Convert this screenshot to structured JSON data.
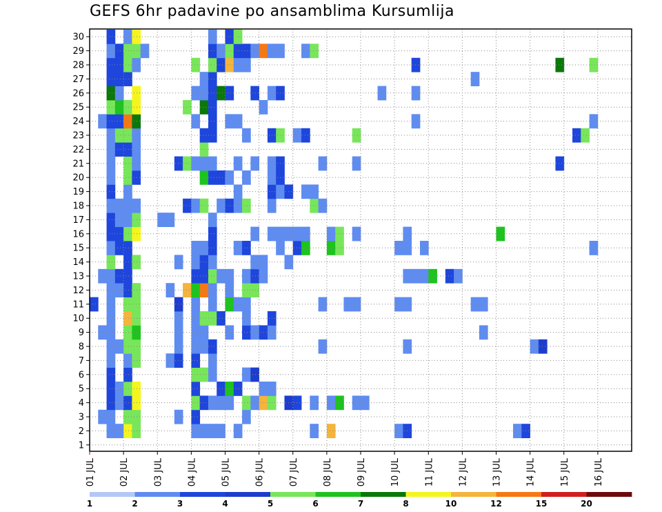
{
  "title": "GEFS 6hr padavine po ansamblima Kursumlija",
  "chart_data": {
    "type": "heatmap",
    "title": "GEFS 6hr padavine po ansamblima Kursumlija",
    "x_ticks": [
      "01 JUL",
      "02 JUL",
      "03 JUL",
      "04 JUL",
      "05 JUL",
      "06 JUL",
      "07 JUL",
      "08 JUL",
      "09 JUL",
      "10 JUL",
      "11 JUL",
      "12 JUL",
      "13 JUL",
      "14 JUL",
      "15 JUL",
      "16 JUL"
    ],
    "y_ticks": [
      "1",
      "2",
      "3",
      "4",
      "5",
      "6",
      "7",
      "8",
      "9",
      "10",
      "11",
      "12",
      "13",
      "14",
      "15",
      "16",
      "17",
      "18",
      "19",
      "20",
      "21",
      "22",
      "23",
      "24",
      "25",
      "26",
      "27",
      "28",
      "29",
      "30"
    ],
    "x_step_hours": 6,
    "n_steps": 60,
    "grid": true,
    "legend": {
      "position": "bottom",
      "labels": [
        "1",
        "2",
        "3",
        "4",
        "5",
        "6",
        "7",
        "8",
        "10",
        "12",
        "15",
        "20"
      ],
      "colors": [
        "#b4c8f5",
        "#5f8cf0",
        "#1e46dc",
        "#1e3ccd",
        "#78e65a",
        "#1ec31e",
        "#0a780a",
        "#f5f51e",
        "#f5b43c",
        "#f57814",
        "#d21e1e",
        "#6e0a0a"
      ]
    },
    "cells": [
      [
        2,
        1,
        2
      ],
      [
        3,
        1,
        2
      ],
      [
        4,
        1,
        8
      ],
      [
        5,
        1,
        5
      ],
      [
        12,
        1,
        2
      ],
      [
        13,
        1,
        2
      ],
      [
        14,
        1,
        2
      ],
      [
        15,
        1,
        2
      ],
      [
        17,
        1,
        2
      ],
      [
        26,
        1,
        2
      ],
      [
        28,
        1,
        9
      ],
      [
        36,
        1,
        2
      ],
      [
        37,
        1,
        3
      ],
      [
        50,
        1,
        2
      ],
      [
        51,
        1,
        3
      ],
      [
        1,
        2,
        2
      ],
      [
        2,
        2,
        2
      ],
      [
        4,
        2,
        5
      ],
      [
        5,
        2,
        5
      ],
      [
        10,
        2,
        2
      ],
      [
        12,
        2,
        3
      ],
      [
        18,
        2,
        2
      ],
      [
        2,
        3,
        3
      ],
      [
        3,
        3,
        2
      ],
      [
        4,
        3,
        3
      ],
      [
        5,
        3,
        8
      ],
      [
        12,
        3,
        5
      ],
      [
        13,
        3,
        3
      ],
      [
        14,
        3,
        2
      ],
      [
        15,
        3,
        2
      ],
      [
        16,
        3,
        2
      ],
      [
        18,
        3,
        5
      ],
      [
        19,
        3,
        2
      ],
      [
        20,
        3,
        9
      ],
      [
        21,
        3,
        5
      ],
      [
        23,
        3,
        4
      ],
      [
        24,
        3,
        3
      ],
      [
        26,
        3,
        2
      ],
      [
        28,
        3,
        2
      ],
      [
        29,
        3,
        6
      ],
      [
        31,
        3,
        2
      ],
      [
        32,
        3,
        2
      ],
      [
        2,
        4,
        3
      ],
      [
        3,
        4,
        2
      ],
      [
        4,
        4,
        5
      ],
      [
        5,
        4,
        8
      ],
      [
        12,
        4,
        3
      ],
      [
        15,
        4,
        3
      ],
      [
        16,
        4,
        6
      ],
      [
        17,
        4,
        3
      ],
      [
        20,
        4,
        2
      ],
      [
        21,
        4,
        2
      ],
      [
        2,
        5,
        3
      ],
      [
        4,
        5,
        3
      ],
      [
        12,
        5,
        5
      ],
      [
        13,
        5,
        5
      ],
      [
        14,
        5,
        2
      ],
      [
        18,
        5,
        2
      ],
      [
        19,
        5,
        4
      ],
      [
        2,
        6,
        2
      ],
      [
        4,
        6,
        2
      ],
      [
        5,
        6,
        5
      ],
      [
        9,
        6,
        2
      ],
      [
        10,
        6,
        3
      ],
      [
        12,
        6,
        3
      ],
      [
        14,
        6,
        2
      ],
      [
        2,
        7,
        2
      ],
      [
        3,
        7,
        2
      ],
      [
        4,
        7,
        5
      ],
      [
        5,
        7,
        5
      ],
      [
        10,
        7,
        2
      ],
      [
        12,
        7,
        2
      ],
      [
        13,
        7,
        2
      ],
      [
        14,
        7,
        3
      ],
      [
        27,
        7,
        2
      ],
      [
        37,
        7,
        2
      ],
      [
        52,
        7,
        2
      ],
      [
        53,
        7,
        4
      ],
      [
        1,
        8,
        2
      ],
      [
        2,
        8,
        2
      ],
      [
        4,
        8,
        5
      ],
      [
        5,
        8,
        6
      ],
      [
        10,
        8,
        2
      ],
      [
        12,
        8,
        2
      ],
      [
        13,
        8,
        2
      ],
      [
        16,
        8,
        2
      ],
      [
        18,
        8,
        3
      ],
      [
        19,
        8,
        2
      ],
      [
        20,
        8,
        3
      ],
      [
        21,
        8,
        2
      ],
      [
        46,
        8,
        2
      ],
      [
        2,
        9,
        2
      ],
      [
        4,
        9,
        9
      ],
      [
        5,
        9,
        5
      ],
      [
        10,
        9,
        2
      ],
      [
        12,
        9,
        2
      ],
      [
        13,
        9,
        5
      ],
      [
        14,
        9,
        5
      ],
      [
        15,
        9,
        3
      ],
      [
        18,
        9,
        2
      ],
      [
        21,
        9,
        3
      ],
      [
        0,
        10,
        3
      ],
      [
        2,
        10,
        2
      ],
      [
        4,
        10,
        5
      ],
      [
        5,
        10,
        5
      ],
      [
        10,
        10,
        4
      ],
      [
        12,
        10,
        2
      ],
      [
        14,
        10,
        2
      ],
      [
        16,
        10,
        6
      ],
      [
        17,
        10,
        2
      ],
      [
        18,
        10,
        2
      ],
      [
        27,
        10,
        2
      ],
      [
        30,
        10,
        2
      ],
      [
        31,
        10,
        2
      ],
      [
        36,
        10,
        2
      ],
      [
        37,
        10,
        2
      ],
      [
        45,
        10,
        2
      ],
      [
        46,
        10,
        2
      ],
      [
        2,
        11,
        2
      ],
      [
        3,
        11,
        2
      ],
      [
        4,
        11,
        3
      ],
      [
        5,
        11,
        5
      ],
      [
        9,
        11,
        2
      ],
      [
        11,
        11,
        9
      ],
      [
        12,
        11,
        6
      ],
      [
        13,
        11,
        10
      ],
      [
        14,
        11,
        2
      ],
      [
        16,
        11,
        2
      ],
      [
        18,
        11,
        5
      ],
      [
        19,
        11,
        5
      ],
      [
        1,
        12,
        2
      ],
      [
        2,
        12,
        2
      ],
      [
        3,
        12,
        3
      ],
      [
        4,
        12,
        3
      ],
      [
        12,
        12,
        3
      ],
      [
        13,
        12,
        3
      ],
      [
        14,
        12,
        5
      ],
      [
        15,
        12,
        2
      ],
      [
        16,
        12,
        2
      ],
      [
        18,
        12,
        2
      ],
      [
        19,
        12,
        3
      ],
      [
        20,
        12,
        2
      ],
      [
        37,
        12,
        2
      ],
      [
        38,
        12,
        2
      ],
      [
        39,
        12,
        2
      ],
      [
        40,
        12,
        6
      ],
      [
        42,
        12,
        3
      ],
      [
        43,
        12,
        2
      ],
      [
        2,
        13,
        5
      ],
      [
        4,
        13,
        3
      ],
      [
        5,
        13,
        5
      ],
      [
        10,
        13,
        2
      ],
      [
        12,
        13,
        2
      ],
      [
        13,
        13,
        3
      ],
      [
        14,
        13,
        2
      ],
      [
        19,
        13,
        2
      ],
      [
        20,
        13,
        2
      ],
      [
        23,
        13,
        2
      ],
      [
        2,
        14,
        2
      ],
      [
        3,
        14,
        3
      ],
      [
        4,
        14,
        3
      ],
      [
        12,
        14,
        2
      ],
      [
        13,
        14,
        2
      ],
      [
        14,
        14,
        3
      ],
      [
        17,
        14,
        2
      ],
      [
        18,
        14,
        3
      ],
      [
        22,
        14,
        2
      ],
      [
        24,
        14,
        3
      ],
      [
        25,
        14,
        6
      ],
      [
        28,
        14,
        6
      ],
      [
        29,
        14,
        5
      ],
      [
        36,
        14,
        2
      ],
      [
        37,
        14,
        2
      ],
      [
        39,
        14,
        2
      ],
      [
        59,
        14,
        2
      ],
      [
        2,
        15,
        3
      ],
      [
        3,
        15,
        3
      ],
      [
        4,
        15,
        5
      ],
      [
        5,
        15,
        8
      ],
      [
        14,
        15,
        3
      ],
      [
        19,
        15,
        2
      ],
      [
        21,
        15,
        2
      ],
      [
        22,
        15,
        2
      ],
      [
        23,
        15,
        2
      ],
      [
        24,
        15,
        2
      ],
      [
        25,
        15,
        2
      ],
      [
        28,
        15,
        2
      ],
      [
        29,
        15,
        5
      ],
      [
        31,
        15,
        2
      ],
      [
        37,
        15,
        2
      ],
      [
        48,
        15,
        6
      ],
      [
        2,
        16,
        3
      ],
      [
        3,
        16,
        2
      ],
      [
        4,
        16,
        2
      ],
      [
        5,
        16,
        5
      ],
      [
        8,
        16,
        2
      ],
      [
        9,
        16,
        2
      ],
      [
        14,
        16,
        2
      ],
      [
        2,
        17,
        2
      ],
      [
        3,
        17,
        2
      ],
      [
        4,
        17,
        2
      ],
      [
        5,
        17,
        2
      ],
      [
        11,
        17,
        3
      ],
      [
        12,
        17,
        2
      ],
      [
        13,
        17,
        5
      ],
      [
        15,
        17,
        2
      ],
      [
        16,
        17,
        3
      ],
      [
        17,
        17,
        2
      ],
      [
        18,
        17,
        5
      ],
      [
        21,
        17,
        2
      ],
      [
        26,
        17,
        5
      ],
      [
        27,
        17,
        2
      ],
      [
        2,
        18,
        3
      ],
      [
        4,
        18,
        2
      ],
      [
        17,
        18,
        2
      ],
      [
        21,
        18,
        3
      ],
      [
        22,
        18,
        2
      ],
      [
        23,
        18,
        3
      ],
      [
        25,
        18,
        2
      ],
      [
        26,
        18,
        2
      ],
      [
        2,
        19,
        2
      ],
      [
        4,
        19,
        5
      ],
      [
        5,
        19,
        3
      ],
      [
        13,
        19,
        6
      ],
      [
        14,
        19,
        3
      ],
      [
        15,
        19,
        3
      ],
      [
        16,
        19,
        2
      ],
      [
        18,
        19,
        2
      ],
      [
        21,
        19,
        2
      ],
      [
        22,
        19,
        3
      ],
      [
        2,
        20,
        2
      ],
      [
        4,
        20,
        5
      ],
      [
        5,
        20,
        2
      ],
      [
        10,
        20,
        3
      ],
      [
        11,
        20,
        5
      ],
      [
        12,
        20,
        2
      ],
      [
        13,
        20,
        2
      ],
      [
        14,
        20,
        2
      ],
      [
        17,
        20,
        2
      ],
      [
        19,
        20,
        2
      ],
      [
        21,
        20,
        2
      ],
      [
        22,
        20,
        3
      ],
      [
        27,
        20,
        2
      ],
      [
        31,
        20,
        2
      ],
      [
        55,
        20,
        3
      ],
      [
        2,
        21,
        2
      ],
      [
        3,
        21,
        3
      ],
      [
        4,
        21,
        3
      ],
      [
        5,
        21,
        2
      ],
      [
        13,
        21,
        5
      ],
      [
        2,
        22,
        2
      ],
      [
        3,
        22,
        5
      ],
      [
        4,
        22,
        5
      ],
      [
        5,
        22,
        2
      ],
      [
        13,
        22,
        3
      ],
      [
        14,
        22,
        3
      ],
      [
        18,
        22,
        2
      ],
      [
        21,
        22,
        3
      ],
      [
        22,
        22,
        5
      ],
      [
        24,
        22,
        2
      ],
      [
        25,
        22,
        3
      ],
      [
        31,
        22,
        5
      ],
      [
        57,
        22,
        3
      ],
      [
        58,
        22,
        5
      ],
      [
        1,
        23,
        2
      ],
      [
        2,
        23,
        3
      ],
      [
        3,
        23,
        3
      ],
      [
        4,
        23,
        10
      ],
      [
        5,
        23,
        7
      ],
      [
        12,
        23,
        2
      ],
      [
        14,
        23,
        3
      ],
      [
        16,
        23,
        2
      ],
      [
        17,
        23,
        2
      ],
      [
        38,
        23,
        2
      ],
      [
        59,
        23,
        2
      ],
      [
        2,
        24,
        5
      ],
      [
        3,
        24,
        6
      ],
      [
        4,
        24,
        5
      ],
      [
        5,
        24,
        8
      ],
      [
        11,
        24,
        5
      ],
      [
        13,
        24,
        7
      ],
      [
        14,
        24,
        3
      ],
      [
        20,
        24,
        2
      ],
      [
        2,
        25,
        7
      ],
      [
        3,
        25,
        2
      ],
      [
        5,
        25,
        8
      ],
      [
        12,
        25,
        2
      ],
      [
        13,
        25,
        2
      ],
      [
        14,
        25,
        3
      ],
      [
        15,
        25,
        7
      ],
      [
        16,
        25,
        3
      ],
      [
        19,
        25,
        3
      ],
      [
        21,
        25,
        2
      ],
      [
        22,
        25,
        3
      ],
      [
        34,
        25,
        2
      ],
      [
        38,
        25,
        2
      ],
      [
        2,
        26,
        3
      ],
      [
        3,
        26,
        3
      ],
      [
        4,
        26,
        3
      ],
      [
        13,
        26,
        2
      ],
      [
        14,
        26,
        3
      ],
      [
        45,
        26,
        2
      ],
      [
        2,
        27,
        3
      ],
      [
        3,
        27,
        3
      ],
      [
        4,
        27,
        5
      ],
      [
        5,
        27,
        2
      ],
      [
        12,
        27,
        5
      ],
      [
        14,
        27,
        5
      ],
      [
        15,
        27,
        3
      ],
      [
        16,
        27,
        9
      ],
      [
        17,
        27,
        2
      ],
      [
        18,
        27,
        2
      ],
      [
        38,
        27,
        3
      ],
      [
        55,
        27,
        7
      ],
      [
        59,
        27,
        5
      ],
      [
        2,
        28,
        2
      ],
      [
        3,
        28,
        3
      ],
      [
        4,
        28,
        5
      ],
      [
        5,
        28,
        5
      ],
      [
        6,
        28,
        2
      ],
      [
        14,
        28,
        3
      ],
      [
        15,
        28,
        2
      ],
      [
        16,
        28,
        5
      ],
      [
        17,
        28,
        3
      ],
      [
        18,
        28,
        3
      ],
      [
        19,
        28,
        2
      ],
      [
        20,
        28,
        10
      ],
      [
        21,
        28,
        2
      ],
      [
        22,
        28,
        2
      ],
      [
        25,
        28,
        2
      ],
      [
        26,
        28,
        5
      ],
      [
        2,
        29,
        3
      ],
      [
        4,
        29,
        2
      ],
      [
        5,
        29,
        8
      ],
      [
        14,
        29,
        2
      ],
      [
        16,
        29,
        3
      ],
      [
        17,
        29,
        5
      ]
    ]
  }
}
